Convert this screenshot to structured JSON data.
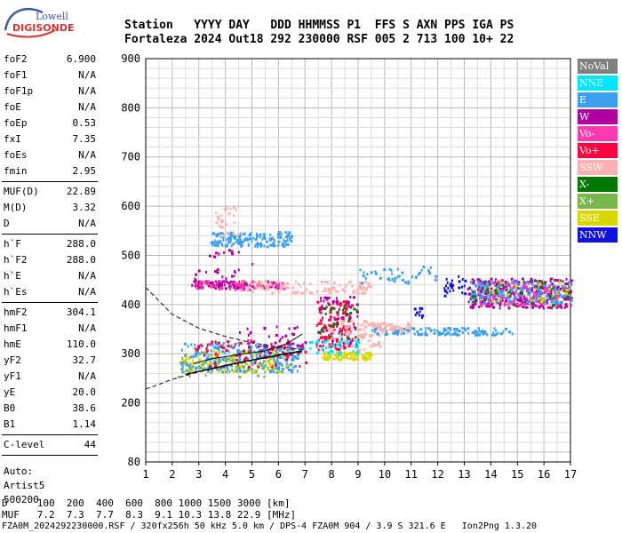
{
  "logo": {
    "line1": "Lowell",
    "line2": "DIGISONDE"
  },
  "header": {
    "row1": "Station   YYYY DAY   DDD HHMMSS P1  FFS S AXN PPS IGA PS",
    "row2": "Fortaleza 2024 Out18 292 230000 RSF 005 2 713 100 10+ 22"
  },
  "params": [
    {
      "group": [
        {
          "name": "foF2",
          "value": "6.900"
        },
        {
          "name": "foF1",
          "value": "N/A"
        },
        {
          "name": "foF1p",
          "value": "N/A"
        },
        {
          "name": "foE",
          "value": "N/A"
        },
        {
          "name": "foEp",
          "value": "0.53"
        },
        {
          "name": "fxI",
          "value": "7.35"
        },
        {
          "name": "foEs",
          "value": "N/A"
        },
        {
          "name": "fmin",
          "value": "2.95"
        }
      ]
    },
    {
      "group": [
        {
          "name": "MUF(D)",
          "value": "22.89"
        },
        {
          "name": "M(D)",
          "value": "3.32"
        },
        {
          "name": "D",
          "value": "N/A"
        }
      ]
    },
    {
      "group": [
        {
          "name": "h`F",
          "value": "288.0"
        },
        {
          "name": "h`F2",
          "value": "288.0"
        },
        {
          "name": "h`E",
          "value": "N/A"
        },
        {
          "name": "h`Es",
          "value": "N/A"
        }
      ]
    },
    {
      "group": [
        {
          "name": "hmF2",
          "value": "304.1"
        },
        {
          "name": "hmF1",
          "value": "N/A"
        },
        {
          "name": "hmE",
          "value": "110.0"
        },
        {
          "name": "yF2",
          "value": "32.7"
        },
        {
          "name": "yF1",
          "value": "N/A"
        },
        {
          "name": "yE",
          "value": "20.0"
        },
        {
          "name": "B0",
          "value": "38.6"
        },
        {
          "name": "B1",
          "value": "1.14"
        }
      ]
    },
    {
      "group": [
        {
          "name": "C-level",
          "value": "44"
        }
      ]
    }
  ],
  "auto": {
    "line1": "Auto:",
    "line2": "Artist5",
    "line3": "500200"
  },
  "legend": [
    {
      "label": "NoVal",
      "color": "#808080"
    },
    {
      "label": "NNE",
      "color": "#00e5ff"
    },
    {
      "label": "E",
      "color": "#3aa0ee"
    },
    {
      "label": "W",
      "color": "#b000a0"
    },
    {
      "label": "Vo-",
      "color": "#ff3ab0"
    },
    {
      "label": "Vo+",
      "color": "#ff0040"
    },
    {
      "label": "SSW",
      "color": "#ffb0b0"
    },
    {
      "label": "X-",
      "color": "#007800"
    },
    {
      "label": "X+",
      "color": "#78b84a"
    },
    {
      "label": "SSE",
      "color": "#d8d800"
    },
    {
      "label": "NNW",
      "color": "#1010e0"
    }
  ],
  "bottom": {
    "d_row": "D     100  200  400  600  800 1000 1500 3000 [km]",
    "muf_row": "MUF   7.2  7.3  7.7  8.3  9.1 10.3 13.8 22.9 [MHz]",
    "file_row": "FZA0M_2024292230000.RSF / 320fx256h 50 kHz 5.0 km / DPS-4 FZA0M 904 / 3.9 S 321.6 E   Ion2Png 1.3.20"
  },
  "chart_data": {
    "type": "scatter",
    "xlim": [
      1,
      17
    ],
    "ylim": [
      80,
      900
    ],
    "x_ticks": [
      1,
      2,
      3,
      4,
      5,
      6,
      7,
      8,
      9,
      10,
      11,
      12,
      13,
      14,
      15,
      16,
      17
    ],
    "x_tick_labels": [
      "1",
      "2",
      "3",
      "4",
      "5",
      "6",
      "7",
      "8",
      "9",
      "10",
      "11",
      "12",
      "13",
      "14",
      "15",
      "16",
      "17"
    ],
    "y_tick_labels": [
      {
        "value": 900,
        "label": "900"
      },
      {
        "value": 800,
        "label": "800"
      },
      {
        "value": 700,
        "label": "700"
      },
      {
        "value": 600,
        "label": "600"
      },
      {
        "value": 500,
        "label": "500"
      },
      {
        "value": 400,
        "label": "400"
      },
      {
        "value": 300,
        "label": "300"
      },
      {
        "value": 200,
        "label": "200"
      },
      {
        "value": 80,
        "label": "80"
      }
    ],
    "grid": true,
    "echo_clusters": [
      {
        "color": "#3aa0ee",
        "x": [
          2.3,
          6.8
        ],
        "y": [
          265,
          325
        ],
        "n": 260
      },
      {
        "color": "#78b84a",
        "x": [
          2.2,
          6.0
        ],
        "y": [
          255,
          305
        ],
        "n": 90
      },
      {
        "color": "#d8d800",
        "x": [
          2.4,
          6.5
        ],
        "y": [
          265,
          310
        ],
        "n": 60
      },
      {
        "color": "#ff0040",
        "x": [
          2.8,
          7.0
        ],
        "y": [
          275,
          330
        ],
        "n": 70
      },
      {
        "color": "#b000a0",
        "x": [
          4.5,
          7.0
        ],
        "y": [
          300,
          360
        ],
        "n": 50
      },
      {
        "color": "#d8d800",
        "x": [
          7.6,
          9.5
        ],
        "y": [
          290,
          305
        ],
        "n": 90
      },
      {
        "color": "#ff0040",
        "x": [
          7.4,
          8.8
        ],
        "y": [
          310,
          410
        ],
        "n": 110
      },
      {
        "color": "#b000a0",
        "x": [
          7.5,
          9.0
        ],
        "y": [
          320,
          420
        ],
        "n": 60
      },
      {
        "color": "#ffb0b0",
        "x": [
          7.8,
          9.8
        ],
        "y": [
          310,
          370
        ],
        "n": 90
      },
      {
        "color": "#007800",
        "x": [
          7.5,
          9.0
        ],
        "y": [
          330,
          400
        ],
        "n": 25
      },
      {
        "color": "#00e5ff",
        "x": [
          6.9,
          9.0
        ],
        "y": [
          300,
          330
        ],
        "n": 40
      },
      {
        "color": "#3aa0ee",
        "x": [
          9.5,
          14.8
        ],
        "y": [
          340,
          355
        ],
        "n": 120
      },
      {
        "color": "#ffb0b0",
        "x": [
          9.7,
          11.0
        ],
        "y": [
          345,
          365
        ],
        "n": 45
      },
      {
        "color": "#b000a0",
        "x": [
          13.1,
          17.0
        ],
        "y": [
          395,
          455
        ],
        "n": 320
      },
      {
        "color": "#ff3ab0",
        "x": [
          13.5,
          16.6
        ],
        "y": [
          400,
          450
        ],
        "n": 120
      },
      {
        "color": "#3aa0ee",
        "x": [
          13.2,
          17.0
        ],
        "y": [
          405,
          450
        ],
        "n": 150
      },
      {
        "color": "#007800",
        "x": [
          13.2,
          17.0
        ],
        "y": [
          400,
          455
        ],
        "n": 35
      },
      {
        "color": "#d8d800",
        "x": [
          13.8,
          17.0
        ],
        "y": [
          405,
          450
        ],
        "n": 30
      },
      {
        "color": "#1010e0",
        "x": [
          12.2,
          13.0
        ],
        "y": [
          420,
          460
        ],
        "n": 25
      },
      {
        "color": "#1010e0",
        "x": [
          11.1,
          11.4
        ],
        "y": [
          375,
          395
        ],
        "n": 10
      },
      {
        "color": "#b000a0",
        "x": [
          2.7,
          6.0
        ],
        "y": [
          435,
          450
        ],
        "n": 120
      },
      {
        "color": "#ff3ab0",
        "x": [
          2.8,
          6.2
        ],
        "y": [
          432,
          450
        ],
        "n": 60
      },
      {
        "color": "#ffb0b0",
        "x": [
          4.5,
          9.5
        ],
        "y": [
          425,
          450
        ],
        "n": 110
      },
      {
        "color": "#3aa0ee",
        "x": [
          3.4,
          6.5
        ],
        "y": [
          520,
          550
        ],
        "n": 150
      },
      {
        "color": "#ffb0b0",
        "x": [
          3.6,
          4.6
        ],
        "y": [
          540,
          600
        ],
        "n": 30
      },
      {
        "color": "#b000a0",
        "x": [
          2.8,
          5.0
        ],
        "y": [
          450,
          520
        ],
        "n": 25
      },
      {
        "color": "#3aa0ee",
        "x": [
          9.0,
          12.0
        ],
        "y": [
          445,
          480
        ],
        "n": 40
      }
    ],
    "traced_trace": {
      "x": [
        2.8,
        3.5,
        4.5,
        5.5,
        6.3,
        6.9
      ],
      "y": [
        280,
        290,
        298,
        306,
        320,
        340
      ]
    },
    "model_curves": [
      {
        "x": [
          1.0,
          2.0,
          3.0,
          4.0,
          5.0,
          6.0,
          7.0
        ],
        "y": [
          435,
          380,
          352,
          335,
          322,
          314,
          308
        ]
      },
      {
        "x": [
          1.0,
          2.0,
          3.0,
          4.0,
          5.0,
          6.0,
          7.0
        ],
        "y": [
          228,
          248,
          263,
          275,
          286,
          296,
          305
        ]
      }
    ],
    "model_profile": {
      "x": [
        2.5,
        3.5,
        4.5,
        5.5,
        6.5,
        6.9
      ],
      "y": [
        258,
        270,
        282,
        292,
        302,
        306
      ]
    }
  }
}
